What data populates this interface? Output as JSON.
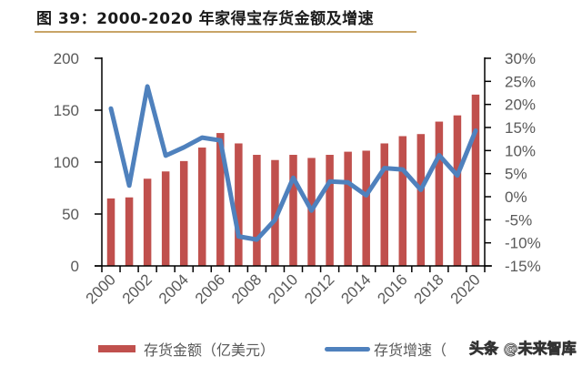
{
  "header": {
    "title": "图 39：2000-2020 年家得宝存货金额及增速"
  },
  "chart_data": {
    "type": "bar+line",
    "title": "图 39：2000-2020 年家得宝存货金额及增速",
    "categories": [
      "2000",
      "2001",
      "2002",
      "2003",
      "2004",
      "2005",
      "2006",
      "2007",
      "2008",
      "2009",
      "2010",
      "2011",
      "2012",
      "2013",
      "2014",
      "2015",
      "2016",
      "2017",
      "2018",
      "2019",
      "2020"
    ],
    "x_tick_labels": [
      "2000",
      "2002",
      "2004",
      "2006",
      "2008",
      "2010",
      "2012",
      "2014",
      "2016",
      "2018",
      "2020"
    ],
    "series": [
      {
        "name": "存货金额（亿美元）",
        "type": "bar",
        "axis": "left",
        "color": "#c0504d",
        "values": [
          65,
          66,
          84,
          91,
          101,
          114,
          128,
          118,
          107,
          102,
          107,
          104,
          107,
          110,
          111,
          118,
          125,
          127,
          139,
          145,
          165
        ]
      },
      {
        "name": "存货增速（",
        "type": "line",
        "axis": "right",
        "color": "#4f81bd",
        "values": [
          19.1,
          2.4,
          23.9,
          8.9,
          10.7,
          12.8,
          12.2,
          -8.6,
          -9.3,
          -5.0,
          4.1,
          -3.0,
          3.3,
          3.1,
          0.3,
          6.2,
          5.9,
          1.5,
          9.0,
          4.6,
          14.3
        ]
      }
    ],
    "left_axis": {
      "ylim": [
        0,
        200
      ],
      "ticks": [
        0,
        50,
        100,
        150,
        200
      ],
      "tick_labels": [
        "0",
        "50",
        "100",
        "150",
        "200"
      ]
    },
    "right_axis": {
      "ylim": [
        -15,
        30
      ],
      "ticks": [
        -15,
        -10,
        -5,
        0,
        5,
        10,
        15,
        20,
        25,
        30
      ],
      "tick_labels": [
        "-15%",
        "-10%",
        "-5%",
        "0%",
        "5%",
        "10%",
        "15%",
        "20%",
        "25%",
        "30%"
      ]
    },
    "grid": false,
    "legend_position": "bottom"
  },
  "legend": {
    "bar_label": "存货金额（亿美元）",
    "line_label": "存货增速（"
  },
  "watermark": "头条 @未来智库"
}
